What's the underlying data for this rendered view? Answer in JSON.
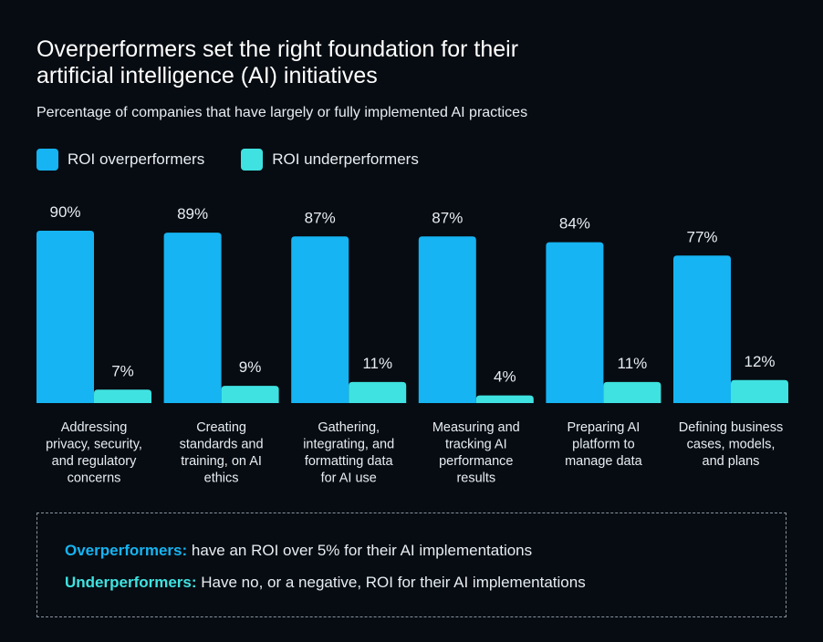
{
  "title_line1": "Overperformers set the right foundation for their",
  "title_line2": "artificial intelligence (AI) initiatives",
  "subtitle": "Percentage of companies that have largely or fully implemented AI practices",
  "colors": {
    "overperformers": "#16b4f2",
    "underperformers": "#3fe2e0",
    "background": "#070c12"
  },
  "chart_data": {
    "type": "bar",
    "title": "Overperformers set the right foundation for their artificial intelligence (AI) initiatives",
    "subtitle": "Percentage of companies that have largely or fully implemented AI practices",
    "categories": [
      [
        "Addressing",
        "privacy, security,",
        "and regulatory",
        "concerns"
      ],
      [
        "Creating",
        "standards and",
        "training, on AI",
        "ethics"
      ],
      [
        "Gathering,",
        "integrating, and",
        "formatting data",
        "for AI use"
      ],
      [
        "Measuring and",
        "tracking AI",
        "performance",
        "results"
      ],
      [
        "Preparing AI",
        "platform to",
        "manage data"
      ],
      [
        "Defining business",
        "cases, models,",
        "and plans"
      ]
    ],
    "series": [
      {
        "name": "ROI overperformers",
        "values": [
          90,
          89,
          87,
          87,
          84,
          77
        ],
        "labels": [
          "90%",
          "89%",
          "87%",
          "87%",
          "84%",
          "77%"
        ]
      },
      {
        "name": "ROI underperformers",
        "values": [
          7,
          9,
          11,
          4,
          11,
          12
        ],
        "labels": [
          "7%",
          "9%",
          "11%",
          "4%",
          "11%",
          "12%"
        ]
      }
    ],
    "ylim": [
      0,
      100
    ],
    "grid": false,
    "legend": "top-left",
    "xlabel": "",
    "ylabel": ""
  },
  "callout": {
    "over_term": "Overperformers:",
    "over_text": " have an ROI over 5% for their AI implementations",
    "under_term": "Underperformers:",
    "under_text": " Have no, or a negative, ROI for their AI implementations"
  }
}
